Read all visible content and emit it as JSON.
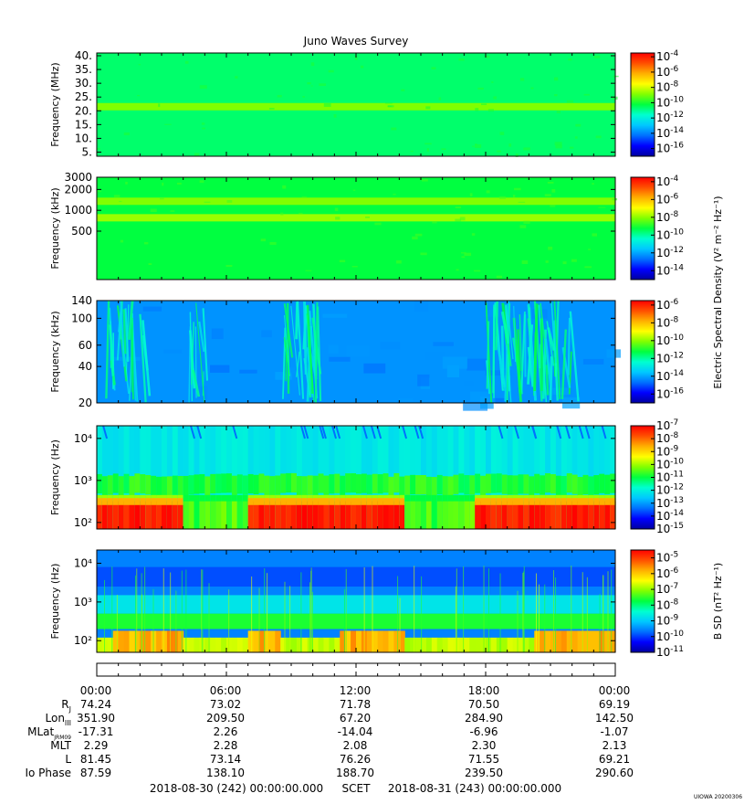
{
  "title": "Juno Waves Survey",
  "colors": {
    "cmap": [
      "#0000a0",
      "#0000ff",
      "#0070ff",
      "#00c8ff",
      "#00ffd0",
      "#00ff40",
      "#80ff00",
      "#ffff00",
      "#ffb000",
      "#ff5000",
      "#ff0000"
    ]
  },
  "chart_data": [
    {
      "type": "heatmap",
      "name": "panel-1",
      "ylabel": "Frequency (MHz)",
      "yscale": "linear",
      "ylim": [
        3.5,
        41
      ],
      "yticks": [
        "40.",
        "35.",
        "30.",
        "25.",
        "20.",
        "15.",
        "10.",
        "5."
      ],
      "ytick_values": [
        40,
        35,
        30,
        25,
        20,
        15,
        10,
        5
      ],
      "colorbar": {
        "ticks": [
          "-4",
          "-6",
          "-8",
          "-10",
          "-12",
          "-14",
          "-16"
        ],
        "base": "10",
        "range": [
          -17,
          -3.5
        ]
      },
      "base_level": 0.47,
      "bands": [
        {
          "y": 21.5,
          "level": 0.6
        }
      ]
    },
    {
      "type": "heatmap",
      "name": "panel-2",
      "ylabel": "Frequency (kHz)",
      "yscale": "log",
      "ylim": [
        100,
        3000
      ],
      "yticks": [
        "3000",
        "2000",
        "1000",
        "500"
      ],
      "ytick_values": [
        3000,
        2000,
        1000,
        500
      ],
      "colorbar": {
        "ticks": [
          "-4",
          "-6",
          "-8",
          "-10",
          "-12",
          "-14"
        ],
        "base": "10",
        "range": [
          -15,
          -3.5
        ]
      },
      "base_level": 0.5,
      "bands": [
        {
          "y": 1350,
          "level": 0.6
        },
        {
          "y": 780,
          "level": 0.62
        }
      ]
    },
    {
      "type": "heatmap",
      "name": "panel-3",
      "ylabel": "Frequency (kHz)",
      "yscale": "log",
      "ylim": [
        20,
        140
      ],
      "yticks": [
        "140",
        "100",
        "60",
        "40",
        "20"
      ],
      "ytick_values": [
        140,
        100,
        60,
        40,
        20
      ],
      "colorbar": {
        "ticks": [
          "-6",
          "-8",
          "-10",
          "-12",
          "-14",
          "-16"
        ],
        "base": "10",
        "range": [
          -17,
          -5.5
        ]
      },
      "colorbar_label": "Electric Spectral Density (V² m⁻² Hz⁻¹)",
      "base_level": 0.24,
      "bursts_hours": [
        [
          0.5,
          2.2
        ],
        [
          4.3,
          5.0
        ],
        [
          8.6,
          10.3
        ],
        [
          18.0,
          22.0
        ]
      ]
    },
    {
      "type": "heatmap",
      "name": "panel-4",
      "ylabel": "Frequency (Hz)",
      "yscale": "log",
      "ylim": [
        70,
        20000
      ],
      "yticks": [
        "10⁴",
        "10³",
        "10²"
      ],
      "ytick_values": [
        10000,
        1000,
        100
      ],
      "colorbar": {
        "ticks": [
          "-7",
          "-8",
          "-9",
          "-10",
          "-11",
          "-12",
          "-13",
          "-14",
          "-15"
        ],
        "base": "10",
        "range": [
          -15,
          -7
        ]
      },
      "intense_intervals_hours": [
        [
          0,
          3.9
        ],
        [
          7.0,
          14.3
        ],
        [
          17.4,
          20.3
        ],
        [
          20.3,
          24.0
        ]
      ]
    },
    {
      "type": "heatmap",
      "name": "panel-5",
      "ylabel": "Frequency (Hz)",
      "yscale": "log",
      "ylim": [
        50,
        22000
      ],
      "yticks": [
        "10⁴",
        "10³",
        "10²"
      ],
      "ytick_values": [
        10000,
        1000,
        100
      ],
      "colorbar": {
        "ticks": [
          "-5",
          "-6",
          "-7",
          "-8",
          "-9",
          "-10",
          "-11"
        ],
        "base": "10",
        "range": [
          -11,
          -4.5
        ]
      },
      "colorbar_label": "B SD (nT² Hz⁻¹)",
      "intense_intervals_hours": [
        [
          0.8,
          4.0
        ],
        [
          7.0,
          8.6
        ],
        [
          11.3,
          14.3
        ],
        [
          20.3,
          24.0
        ]
      ]
    }
  ],
  "x_axis": {
    "hours": [
      0,
      6,
      12,
      18,
      24
    ],
    "rows": [
      {
        "label": "",
        "sub": "",
        "values": [
          "00:00",
          "06:00",
          "12:00",
          "18:00",
          "00:00"
        ]
      },
      {
        "label": "R",
        "sub": "J",
        "values": [
          "74.24",
          "73.02",
          "71.78",
          "70.50",
          "69.19"
        ]
      },
      {
        "label": "Lon",
        "sub": "III",
        "values": [
          "351.90",
          "209.50",
          "67.20",
          "284.90",
          "142.50"
        ]
      },
      {
        "label": "MLat",
        "sub": "JRM09",
        "values": [
          "-17.31",
          "2.26",
          "-14.04",
          "-6.96",
          "-1.07"
        ]
      },
      {
        "label": "MLT",
        "sub": "",
        "values": [
          "2.29",
          "2.28",
          "2.08",
          "2.30",
          "2.13"
        ]
      },
      {
        "label": "L",
        "sub": "",
        "values": [
          "81.45",
          "73.14",
          "76.26",
          "71.55",
          "69.21"
        ]
      },
      {
        "label": "Io Phase",
        "sub": "",
        "values": [
          "87.59",
          "138.10",
          "188.70",
          "239.50",
          "290.60"
        ]
      }
    ],
    "footer_left": "2018-08-30 (242) 00:00:00.000",
    "footer_mid": "SCET",
    "footer_right": "2018-08-31 (243) 00:00:00.000"
  },
  "credit": "UIOWA 20200306"
}
